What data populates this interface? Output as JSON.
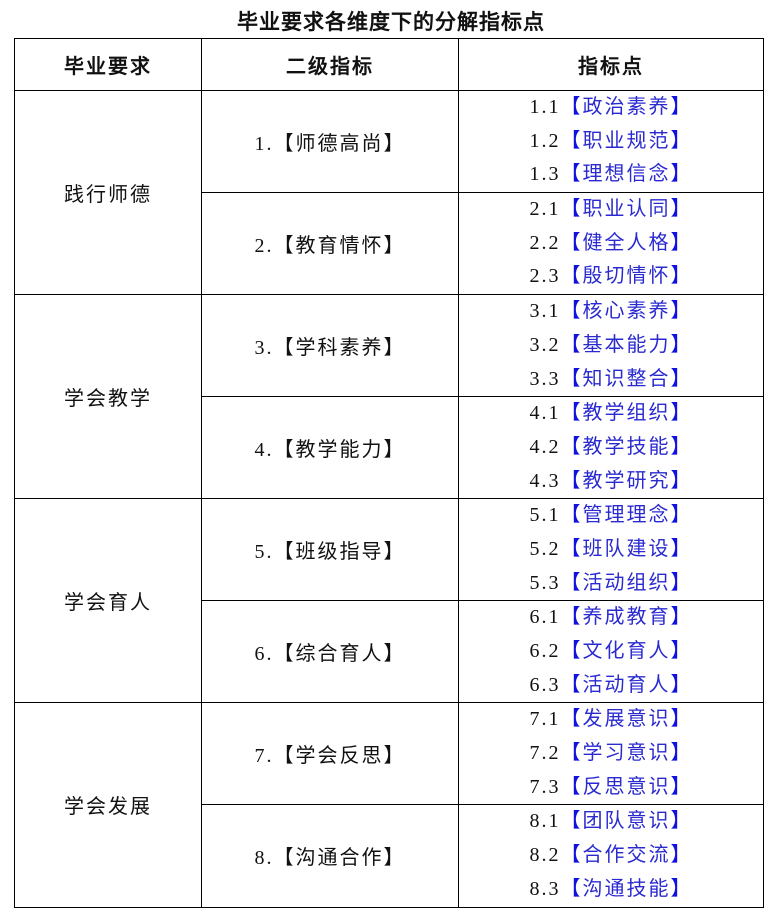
{
  "title": "毕业要求各维度下的分解指标点",
  "headers": [
    "毕业要求",
    "二级指标",
    "指标点"
  ],
  "colors": {
    "indicator_text": "#2a2ad0",
    "bracket": "#1010e0",
    "text": "#111111"
  },
  "requirements": [
    {
      "name": "践行师德",
      "secondary": [
        {
          "label": "1.【师德高尚】",
          "points": [
            {
              "num": "1.1",
              "name": "政治素养"
            },
            {
              "num": "1.2",
              "name": "职业规范"
            },
            {
              "num": "1.3",
              "name": "理想信念"
            }
          ]
        },
        {
          "label": "2.【教育情怀】",
          "points": [
            {
              "num": "2.1",
              "name": "职业认同"
            },
            {
              "num": "2.2",
              "name": "健全人格"
            },
            {
              "num": "2.3",
              "name": "殷切情怀"
            }
          ]
        }
      ]
    },
    {
      "name": "学会教学",
      "secondary": [
        {
          "label": "3.【学科素养】",
          "points": [
            {
              "num": "3.1",
              "name": "核心素养"
            },
            {
              "num": "3.2",
              "name": "基本能力"
            },
            {
              "num": "3.3",
              "name": "知识整合"
            }
          ]
        },
        {
          "label": "4.【教学能力】",
          "points": [
            {
              "num": "4.1",
              "name": "教学组织"
            },
            {
              "num": "4.2",
              "name": "教学技能"
            },
            {
              "num": "4.3",
              "name": "教学研究"
            }
          ]
        }
      ]
    },
    {
      "name": "学会育人",
      "secondary": [
        {
          "label": "5.【班级指导】",
          "points": [
            {
              "num": "5.1",
              "name": "管理理念"
            },
            {
              "num": "5.2",
              "name": "班队建设"
            },
            {
              "num": "5.3",
              "name": "活动组织"
            }
          ]
        },
        {
          "label": "6.【综合育人】",
          "points": [
            {
              "num": "6.1",
              "name": "养成教育"
            },
            {
              "num": "6.2",
              "name": "文化育人"
            },
            {
              "num": "6.3",
              "name": "活动育人"
            }
          ]
        }
      ]
    },
    {
      "name": "学会发展",
      "secondary": [
        {
          "label": "7.【学会反思】",
          "points": [
            {
              "num": "7.1",
              "name": "发展意识"
            },
            {
              "num": "7.2",
              "name": "学习意识"
            },
            {
              "num": "7.3",
              "name": "反思意识"
            }
          ]
        },
        {
          "label": "8.【沟通合作】",
          "points": [
            {
              "num": "8.1",
              "name": "团队意识"
            },
            {
              "num": "8.2",
              "name": "合作交流"
            },
            {
              "num": "8.3",
              "name": "沟通技能"
            }
          ]
        }
      ]
    }
  ]
}
